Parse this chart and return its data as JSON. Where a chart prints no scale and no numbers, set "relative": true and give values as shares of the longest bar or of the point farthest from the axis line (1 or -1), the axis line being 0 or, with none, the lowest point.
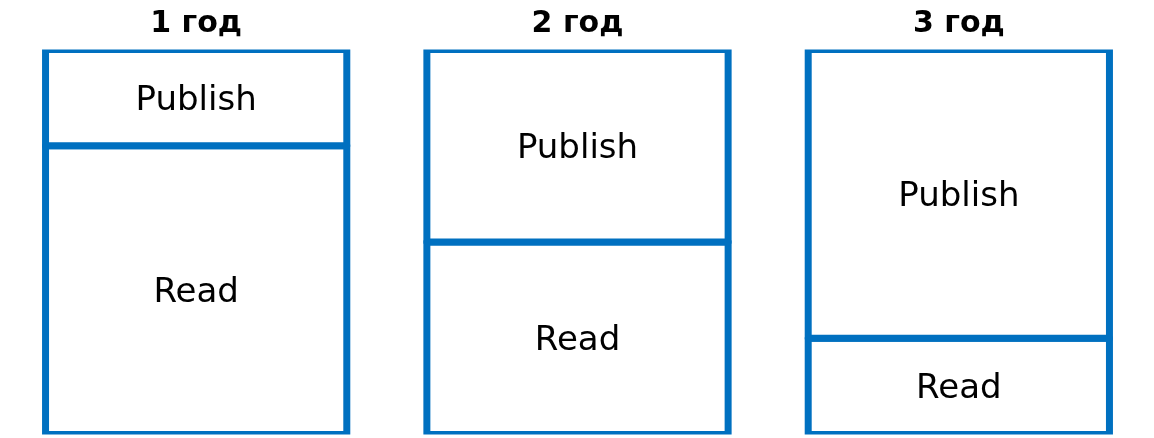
{
  "chart_data": {
    "type": "bar",
    "stacked": true,
    "relative": true,
    "categories": [
      "1 год",
      "2 год",
      "3 год"
    ],
    "series": [
      {
        "name": "Read",
        "color": "#0070c0",
        "values": [
          0.75,
          0.5,
          0.25
        ]
      },
      {
        "name": "Publish",
        "color": "#0070c0",
        "values": [
          0.25,
          0.5,
          0.75
        ]
      }
    ]
  }
}
